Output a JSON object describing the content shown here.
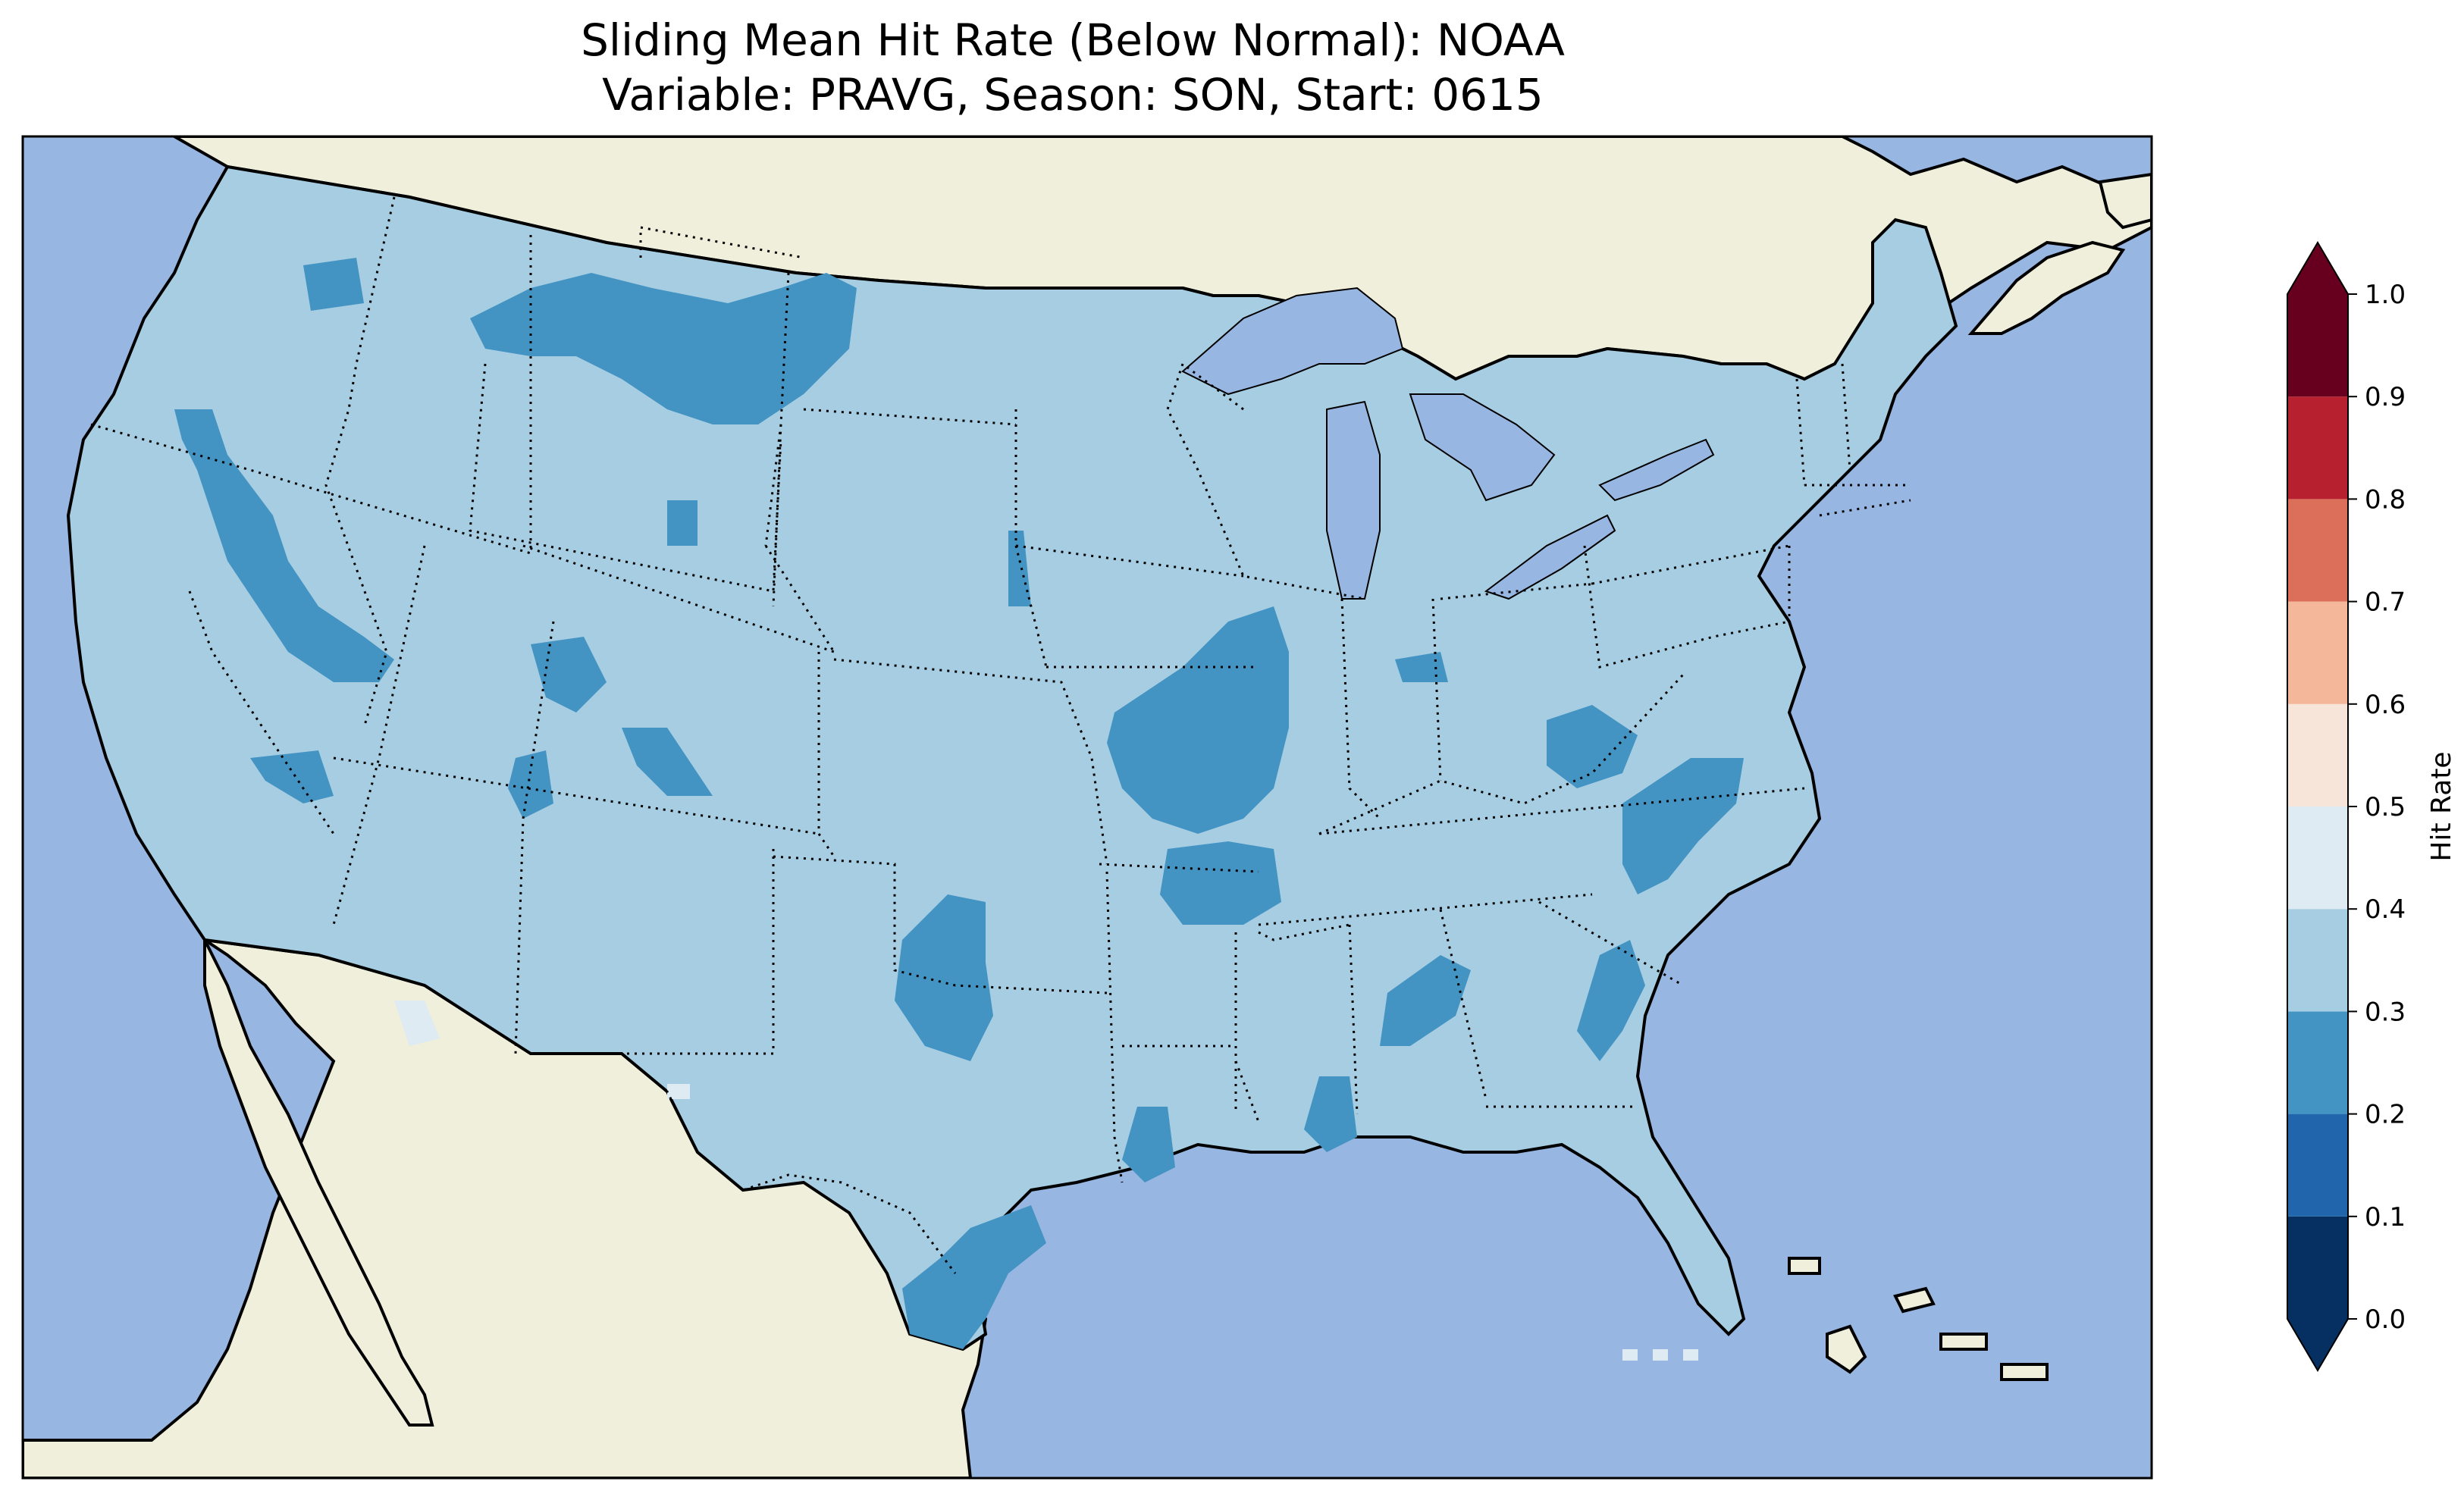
{
  "title_line1": "Sliding Mean Hit Rate (Below Normal): NOAA",
  "title_line2": "Variable: PRAVG, Season: SON, Start: 0615",
  "colors": {
    "ocean": "#97b6e1",
    "land": "#efefdb",
    "lakes": "#97b6e1",
    "coast": "#000000",
    "border": "#000000"
  },
  "colorbar": {
    "label": "Hit Rate",
    "ticks": [
      "0.0",
      "0.1",
      "0.2",
      "0.3",
      "0.4",
      "0.5",
      "0.6",
      "0.7",
      "0.8",
      "0.9",
      "1.0"
    ],
    "bins": [
      {
        "from": 0.0,
        "to": 0.1,
        "color": "#053061"
      },
      {
        "from": 0.1,
        "to": 0.2,
        "color": "#2166ac"
      },
      {
        "from": 0.2,
        "to": 0.3,
        "color": "#4393c3"
      },
      {
        "from": 0.3,
        "to": 0.4,
        "color": "#a6cde2"
      },
      {
        "from": 0.4,
        "to": 0.5,
        "color": "#deebf2"
      },
      {
        "from": 0.5,
        "to": 0.6,
        "color": "#f8e5da"
      },
      {
        "from": 0.6,
        "to": 0.7,
        "color": "#f4b799"
      },
      {
        "from": 0.7,
        "to": 0.8,
        "color": "#dc6f59"
      },
      {
        "from": 0.8,
        "to": 0.9,
        "color": "#b7202f"
      },
      {
        "from": 0.9,
        "to": 1.0,
        "color": "#67001f"
      }
    ],
    "extend": "both"
  },
  "map_data": {
    "predominant_bin": "0.3-0.4",
    "regions_0.2_0.3": [
      "Northern Montana",
      "Eastern Oregon / Idaho",
      "Central Missouri / Arkansas",
      "Oklahoma",
      "Western Virginia / North Carolina",
      "South Texas coast"
    ],
    "regions_0.4_0.5": [
      "Southern Arizona border",
      "Gulf of Mexico offshore points"
    ]
  }
}
